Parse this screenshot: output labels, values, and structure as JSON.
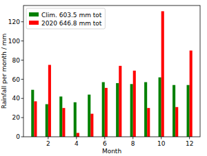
{
  "chart_data": {
    "type": "bar",
    "x_label": "Month",
    "y_label": "Rainfall per month / mm",
    "x": [
      1,
      2,
      3,
      4,
      5,
      6,
      7,
      8,
      9,
      10,
      11,
      12
    ],
    "series": [
      {
        "name": "Clim. 603.5 mm tot",
        "color": "#008000",
        "values": [
          49,
          34,
          42,
          36,
          44,
          57,
          56,
          55,
          57,
          62,
          54,
          54
        ]
      },
      {
        "name": "2020 646.8 mm tot",
        "color": "#ff0000",
        "values": [
          37,
          75,
          30,
          4,
          24,
          51,
          74,
          69,
          30,
          131,
          31,
          90
        ]
      }
    ],
    "xlim": [
      0.25,
      12.75
    ],
    "xticks": [
      2,
      4,
      6,
      8,
      10,
      12
    ],
    "ylim": [
      0,
      137
    ],
    "yticks": [
      0,
      20,
      40,
      60,
      80,
      100,
      120
    ],
    "grid": false,
    "legend": "upper left"
  }
}
